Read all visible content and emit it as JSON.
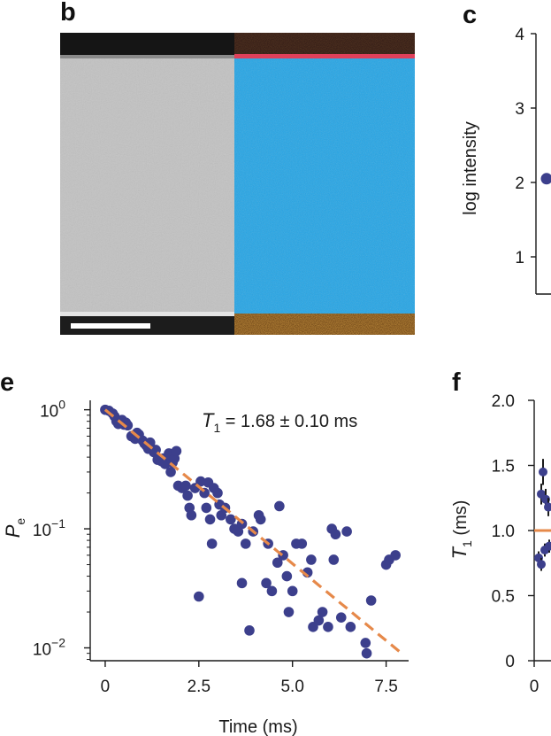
{
  "panels": {
    "b": "b",
    "c": "c",
    "e": "e",
    "f": "f"
  },
  "colors": {
    "point": "#3c3f8c",
    "fit": "#e6894a",
    "haadf_top": "#151515",
    "haadf_body": "#c4c4c4",
    "eds_blue": "#1aa3e8",
    "eds_orange": "#c8600e",
    "eds_red": "#e0405a"
  },
  "chart_data": [
    {
      "panel": "c",
      "type": "scatter",
      "ylabel": "log intensity",
      "ylim": [
        0.5,
        4
      ],
      "yticks": [
        1,
        2,
        3,
        4
      ],
      "points": [
        {
          "y": 2.05
        }
      ]
    },
    {
      "panel": "e",
      "type": "scatter",
      "xlabel": "Time (ms)",
      "ylabel": "P",
      "ylabel_sub": "e",
      "yscale": "log",
      "xlim": [
        -0.4,
        8.1
      ],
      "ylim": [
        0.0078,
        1.2
      ],
      "xticks": [
        0,
        2.5,
        5.0,
        7.5
      ],
      "xtick_labels": [
        "0",
        "2.5",
        "5.0",
        "7.5"
      ],
      "yticks": [
        1,
        0.1,
        0.01
      ],
      "ytick_labels": [
        {
          "base": "10",
          "exp": "0"
        },
        {
          "base": "10",
          "exp": "−1"
        },
        {
          "base": "10",
          "exp": "−2"
        }
      ],
      "annotation": {
        "label": "T",
        "sub": "1",
        "text": " = 1.68 ± 0.10 ms"
      },
      "fit": {
        "amplitude": 1.0,
        "T1": 1.68,
        "x_range": [
          0,
          7.9
        ]
      },
      "points": [
        [
          0.0,
          1.0
        ],
        [
          0.1,
          0.98
        ],
        [
          0.2,
          0.93
        ],
        [
          0.25,
          0.88
        ],
        [
          0.3,
          0.8
        ],
        [
          0.35,
          0.76
        ],
        [
          0.45,
          0.82
        ],
        [
          0.5,
          0.75
        ],
        [
          0.55,
          0.78
        ],
        [
          0.6,
          0.74
        ],
        [
          0.7,
          0.6
        ],
        [
          0.8,
          0.57
        ],
        [
          0.85,
          0.64
        ],
        [
          0.9,
          0.62
        ],
        [
          1.0,
          0.55
        ],
        [
          1.05,
          0.52
        ],
        [
          1.1,
          0.5
        ],
        [
          1.15,
          0.47
        ],
        [
          1.2,
          0.53
        ],
        [
          1.3,
          0.44
        ],
        [
          1.35,
          0.46
        ],
        [
          1.4,
          0.38
        ],
        [
          1.5,
          0.37
        ],
        [
          1.55,
          0.39
        ],
        [
          1.6,
          0.35
        ],
        [
          1.7,
          0.43
        ],
        [
          1.75,
          0.4
        ],
        [
          1.8,
          0.36
        ],
        [
          1.85,
          0.39
        ],
        [
          1.9,
          0.45
        ],
        [
          1.75,
          0.3
        ],
        [
          1.95,
          0.23
        ],
        [
          2.05,
          0.22
        ],
        [
          2.15,
          0.23
        ],
        [
          2.2,
          0.19
        ],
        [
          2.25,
          0.15
        ],
        [
          2.3,
          0.13
        ],
        [
          2.4,
          0.22
        ],
        [
          2.55,
          0.25
        ],
        [
          2.65,
          0.2
        ],
        [
          2.7,
          0.15
        ],
        [
          2.8,
          0.12
        ],
        [
          2.75,
          0.245
        ],
        [
          2.9,
          0.22
        ],
        [
          3.0,
          0.2
        ],
        [
          3.05,
          0.16
        ],
        [
          3.1,
          0.13
        ],
        [
          3.2,
          0.15
        ],
        [
          3.35,
          0.12
        ],
        [
          3.45,
          0.1
        ],
        [
          3.55,
          0.095
        ],
        [
          3.65,
          0.11
        ],
        [
          3.75,
          0.075
        ],
        [
          3.95,
          0.095
        ],
        [
          4.1,
          0.13
        ],
        [
          4.15,
          0.12
        ],
        [
          4.35,
          0.075
        ],
        [
          4.3,
          0.035
        ],
        [
          4.45,
          0.03
        ],
        [
          4.6,
          0.052
        ],
        [
          4.65,
          0.155
        ],
        [
          4.75,
          0.06
        ],
        [
          4.85,
          0.04
        ],
        [
          4.9,
          0.02
        ],
        [
          5.0,
          0.03
        ],
        [
          5.1,
          0.075
        ],
        [
          5.25,
          0.075
        ],
        [
          5.4,
          0.043
        ],
        [
          5.5,
          0.055
        ],
        [
          5.55,
          0.015
        ],
        [
          5.7,
          0.017
        ],
        [
          5.8,
          0.02
        ],
        [
          5.95,
          0.015
        ],
        [
          6.05,
          0.1
        ],
        [
          6.1,
          0.055
        ],
        [
          6.15,
          0.09
        ],
        [
          6.3,
          0.018
        ],
        [
          6.45,
          0.095
        ],
        [
          6.55,
          0.015
        ],
        [
          6.95,
          0.011
        ],
        [
          6.98,
          0.009
        ],
        [
          7.1,
          0.025
        ],
        [
          7.5,
          0.05
        ],
        [
          7.58,
          0.055
        ],
        [
          7.75,
          0.06
        ],
        [
          2.5,
          0.027
        ],
        [
          2.85,
          0.075
        ],
        [
          3.85,
          0.014
        ],
        [
          3.65,
          0.035
        ]
      ]
    },
    {
      "panel": "f",
      "type": "scatter",
      "ylabel": "T",
      "ylabel_sub": "1",
      "ylabel_unit": " (ms)",
      "ylim": [
        0,
        2.0
      ],
      "yticks": [
        0,
        0.5,
        1.0,
        1.5,
        2.0
      ],
      "ytick_labels": [
        "0",
        "0.5",
        "1.0",
        "1.5",
        "2.0"
      ],
      "xticks": [
        0
      ],
      "xtick_labels": [
        "0"
      ],
      "reference_line": 1.0,
      "points": [
        {
          "y": 1.45,
          "err": 0.1
        },
        {
          "y": 1.28,
          "err": 0.08
        },
        {
          "y": 1.24,
          "err": 0.08
        },
        {
          "y": 1.18,
          "err": 0.07
        },
        {
          "y": 0.85,
          "err": 0.05
        },
        {
          "y": 0.79,
          "err": 0.05
        },
        {
          "y": 0.74,
          "err": 0.05
        },
        {
          "y": 0.88,
          "err": 0.05
        }
      ]
    }
  ]
}
